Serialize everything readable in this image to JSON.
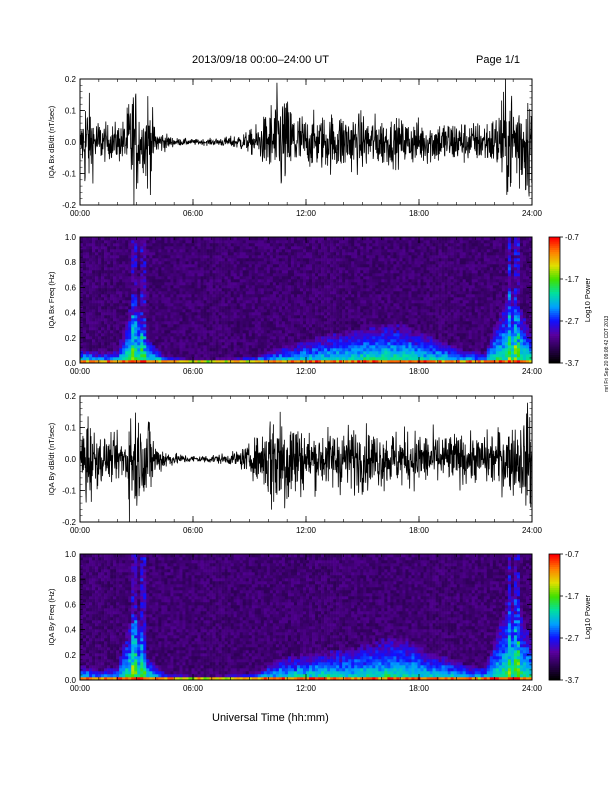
{
  "header": {
    "title": "2013/09/18  00:00–24:00 UT",
    "page": "Page 1/1"
  },
  "footer": {
    "x_title": "Universal Time (hh:mm)",
    "side_note": "mrl Fri Sep 20 09:08:42 CDT 2013"
  },
  "colors": {
    "trace": "#000000",
    "colormap": [
      "#000000",
      "#2a0050",
      "#5a00a0",
      "#1010ff",
      "#00a0ff",
      "#00e0a0",
      "#40e000",
      "#e0e000",
      "#ff8000",
      "#ff0000"
    ]
  },
  "chart_data": [
    {
      "type": "line",
      "ylabel": "IQA Bx dB/dt (nT/sec)",
      "xlabel": "",
      "x_ticks": [
        "00:00",
        "06:00",
        "12:00",
        "18:00",
        "24:00"
      ],
      "xlim": [
        0,
        24
      ],
      "ylim": [
        -0.2,
        0.2
      ],
      "y_ticks": [
        "-0.2",
        "-0.1",
        "0.0",
        "0.1",
        "0.2"
      ],
      "envelope": {
        "x_hours": [
          0,
          0.3,
          0.8,
          1.5,
          2.4,
          2.7,
          3.0,
          3.3,
          3.6,
          4.0,
          5.0,
          6.0,
          7.0,
          8.0,
          9.0,
          9.7,
          10.2,
          10.7,
          11.0,
          12.0,
          13.0,
          14.0,
          15.0,
          16.0,
          17.0,
          18.0,
          19.0,
          20.0,
          21.0,
          22.0,
          22.6,
          23.0,
          23.5,
          24.0
        ],
        "amplitude": [
          0.03,
          0.2,
          0.09,
          0.06,
          0.08,
          0.2,
          0.2,
          0.08,
          0.2,
          0.05,
          0.015,
          0.01,
          0.012,
          0.02,
          0.04,
          0.08,
          0.15,
          0.2,
          0.15,
          0.09,
          0.1,
          0.11,
          0.1,
          0.09,
          0.08,
          0.08,
          0.08,
          0.08,
          0.07,
          0.09,
          0.2,
          0.2,
          0.2,
          0.2
        ]
      }
    },
    {
      "type": "heatmap",
      "ylabel": "IQA Bx Freq (Hz)",
      "xlabel": "",
      "x_ticks": [
        "00:00",
        "06:00",
        "12:00",
        "18:00",
        "24:00"
      ],
      "xlim": [
        0,
        24
      ],
      "ylim": [
        0,
        1.0
      ],
      "y_ticks": [
        "0.0",
        "0.2",
        "0.4",
        "0.6",
        "0.8",
        "1.0"
      ],
      "colorbar": {
        "label": "Log10 Power",
        "ticks": [
          "-0.7",
          "-1.7",
          "-2.7",
          "-3.7"
        ],
        "range": [
          -3.7,
          -0.7
        ]
      },
      "activity": {
        "x_hours": [
          0,
          1,
          2,
          2.8,
          3.2,
          3.6,
          4.5,
          6,
          8,
          9.5,
          10.5,
          11.5,
          12.5,
          13.5,
          14.5,
          15.5,
          16.5,
          17.5,
          18.5,
          19.5,
          20.5,
          21.5,
          22.3,
          22.8,
          23.3,
          24
        ],
        "band_top_hz": [
          0.12,
          0.08,
          0.1,
          0.5,
          0.45,
          0.2,
          0.06,
          0.03,
          0.04,
          0.06,
          0.12,
          0.16,
          0.2,
          0.24,
          0.26,
          0.3,
          0.32,
          0.3,
          0.22,
          0.16,
          0.1,
          0.08,
          0.4,
          0.6,
          0.5,
          0.2
        ]
      }
    },
    {
      "type": "line",
      "ylabel": "IQA By dB/dt (nT/sec)",
      "xlabel": "",
      "x_ticks": [
        "00:00",
        "06:00",
        "12:00",
        "18:00",
        "24:00"
      ],
      "xlim": [
        0,
        24
      ],
      "ylim": [
        -0.2,
        0.2
      ],
      "y_ticks": [
        "-0.2",
        "-0.1",
        "0.0",
        "0.1",
        "0.2"
      ],
      "envelope": {
        "x_hours": [
          0,
          0.3,
          0.8,
          1.5,
          2.4,
          2.7,
          3.0,
          3.3,
          3.6,
          4.0,
          5.0,
          6.0,
          7.0,
          8.0,
          9.0,
          9.7,
          10.2,
          10.7,
          11.0,
          12.0,
          13.0,
          14.0,
          15.0,
          16.0,
          17.0,
          18.0,
          19.0,
          20.0,
          21.0,
          22.0,
          22.6,
          23.0,
          23.5,
          24.0
        ],
        "amplitude": [
          0.04,
          0.2,
          0.1,
          0.07,
          0.09,
          0.2,
          0.2,
          0.1,
          0.2,
          0.06,
          0.02,
          0.012,
          0.015,
          0.02,
          0.05,
          0.1,
          0.2,
          0.2,
          0.2,
          0.1,
          0.1,
          0.12,
          0.11,
          0.1,
          0.1,
          0.1,
          0.09,
          0.09,
          0.08,
          0.1,
          0.12,
          0.12,
          0.15,
          0.2
        ]
      }
    },
    {
      "type": "heatmap",
      "ylabel": "IQA By Freq (Hz)",
      "xlabel": "Universal Time (hh:mm)",
      "x_ticks": [
        "00:00",
        "06:00",
        "12:00",
        "18:00",
        "24:00"
      ],
      "xlim": [
        0,
        24
      ],
      "ylim": [
        0,
        1.0
      ],
      "y_ticks": [
        "0.0",
        "0.2",
        "0.4",
        "0.6",
        "0.8",
        "1.0"
      ],
      "colorbar": {
        "label": "Log10 Power",
        "ticks": [
          "-0.7",
          "-1.7",
          "-2.7",
          "-3.7"
        ],
        "range": [
          -3.7,
          -0.7
        ]
      },
      "activity": {
        "x_hours": [
          0,
          1,
          2,
          2.8,
          3.2,
          3.6,
          4.5,
          6,
          8,
          9.5,
          10.5,
          11.5,
          12.5,
          13.5,
          14.5,
          15.5,
          16.5,
          17.5,
          18.5,
          19.5,
          20.5,
          21.5,
          22.3,
          22.8,
          23.3,
          24
        ],
        "band_top_hz": [
          0.12,
          0.08,
          0.1,
          0.55,
          0.45,
          0.2,
          0.06,
          0.03,
          0.04,
          0.07,
          0.16,
          0.2,
          0.22,
          0.24,
          0.26,
          0.3,
          0.34,
          0.32,
          0.22,
          0.18,
          0.12,
          0.1,
          0.45,
          0.7,
          0.6,
          0.3
        ]
      }
    }
  ]
}
